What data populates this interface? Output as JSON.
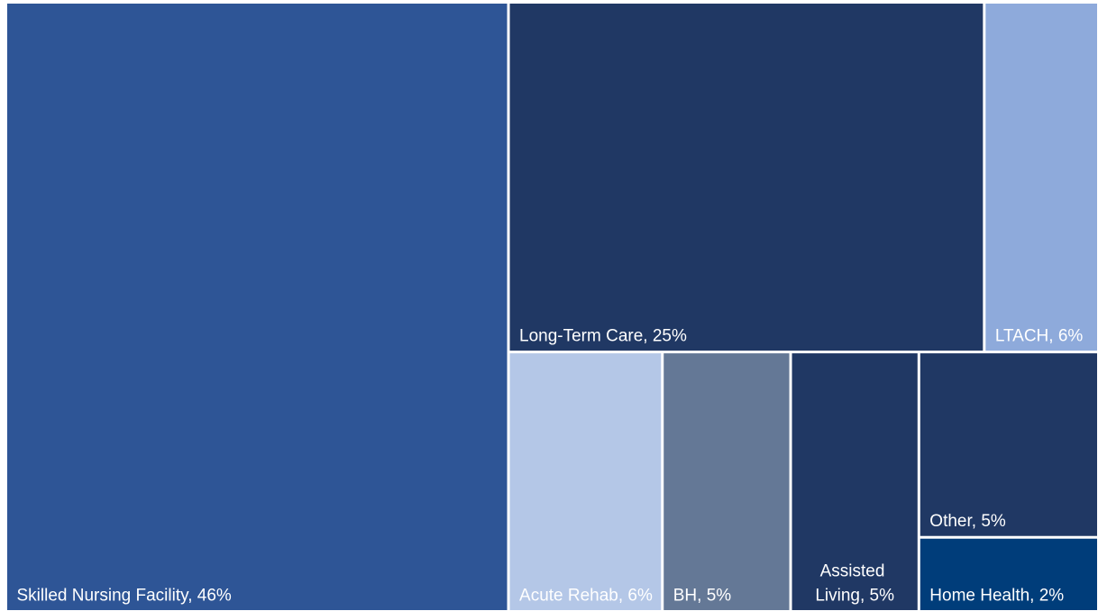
{
  "chart_data": {
    "type": "treemap",
    "labels": [
      "Skilled Nursing Facility, 46%",
      "Long-Term Care, 25%",
      "LTACH, 6%",
      "Acute Rehab, 6%",
      "BH, 5%",
      "Assisted Living, 5%",
      "Other, 5%",
      "Home Health, 2%"
    ],
    "values": [
      46,
      25,
      6,
      6,
      5,
      5,
      5,
      2
    ],
    "colors": [
      "#2e5596",
      "#203864",
      "#8eaadb",
      "#b4c7e7",
      "#647896",
      "#203864",
      "#203864",
      "#003d7a"
    ]
  }
}
